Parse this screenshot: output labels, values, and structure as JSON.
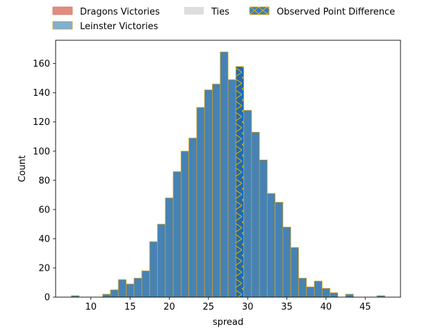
{
  "chart_data": {
    "type": "bar",
    "xlabel": "spread",
    "ylabel": "Count",
    "xlim": [
      5.5,
      49.5
    ],
    "ylim": [
      0,
      176
    ],
    "x_ticks": [
      10,
      15,
      20,
      25,
      30,
      35,
      40,
      45
    ],
    "y_ticks": [
      0,
      20,
      40,
      60,
      80,
      100,
      120,
      140,
      160
    ],
    "grid": false,
    "legend": {
      "placement": "above-plot",
      "entries": [
        {
          "label": "Dragons Victories",
          "color": "#e08c80",
          "style": "patch"
        },
        {
          "label": "Leinster Victories",
          "color": "#7eb0d5",
          "style": "patch"
        },
        {
          "label": "Ties",
          "color": "#dddddd",
          "style": "patch"
        },
        {
          "label": "Observed Point Difference",
          "color": "#3a7fb8",
          "style": "hatched-patch"
        }
      ]
    },
    "bin_width": 1,
    "bar_color": "#4682b4",
    "edge_color": "#d4a017",
    "hatch_color": "#f0b400",
    "observed_point_difference": 29,
    "observed_bar_color": "#1f6bb0",
    "bins": [
      {
        "x": 8,
        "count": 1
      },
      {
        "x": 9,
        "count": 0
      },
      {
        "x": 10,
        "count": 0
      },
      {
        "x": 11,
        "count": 0
      },
      {
        "x": 12,
        "count": 2
      },
      {
        "x": 13,
        "count": 5
      },
      {
        "x": 14,
        "count": 12
      },
      {
        "x": 15,
        "count": 9
      },
      {
        "x": 16,
        "count": 13
      },
      {
        "x": 17,
        "count": 18
      },
      {
        "x": 18,
        "count": 38
      },
      {
        "x": 19,
        "count": 50
      },
      {
        "x": 20,
        "count": 68
      },
      {
        "x": 21,
        "count": 86
      },
      {
        "x": 22,
        "count": 100
      },
      {
        "x": 23,
        "count": 109
      },
      {
        "x": 24,
        "count": 130
      },
      {
        "x": 25,
        "count": 142
      },
      {
        "x": 26,
        "count": 146
      },
      {
        "x": 27,
        "count": 168
      },
      {
        "x": 28,
        "count": 149
      },
      {
        "x": 29,
        "count": 158
      },
      {
        "x": 30,
        "count": 128
      },
      {
        "x": 31,
        "count": 113
      },
      {
        "x": 32,
        "count": 94
      },
      {
        "x": 33,
        "count": 71
      },
      {
        "x": 34,
        "count": 65
      },
      {
        "x": 35,
        "count": 48
      },
      {
        "x": 36,
        "count": 34
      },
      {
        "x": 37,
        "count": 13
      },
      {
        "x": 38,
        "count": 7
      },
      {
        "x": 39,
        "count": 11
      },
      {
        "x": 40,
        "count": 6
      },
      {
        "x": 41,
        "count": 3
      },
      {
        "x": 42,
        "count": 0
      },
      {
        "x": 43,
        "count": 2
      },
      {
        "x": 44,
        "count": 0
      },
      {
        "x": 45,
        "count": 0
      },
      {
        "x": 46,
        "count": 0
      },
      {
        "x": 47,
        "count": 1
      }
    ]
  }
}
